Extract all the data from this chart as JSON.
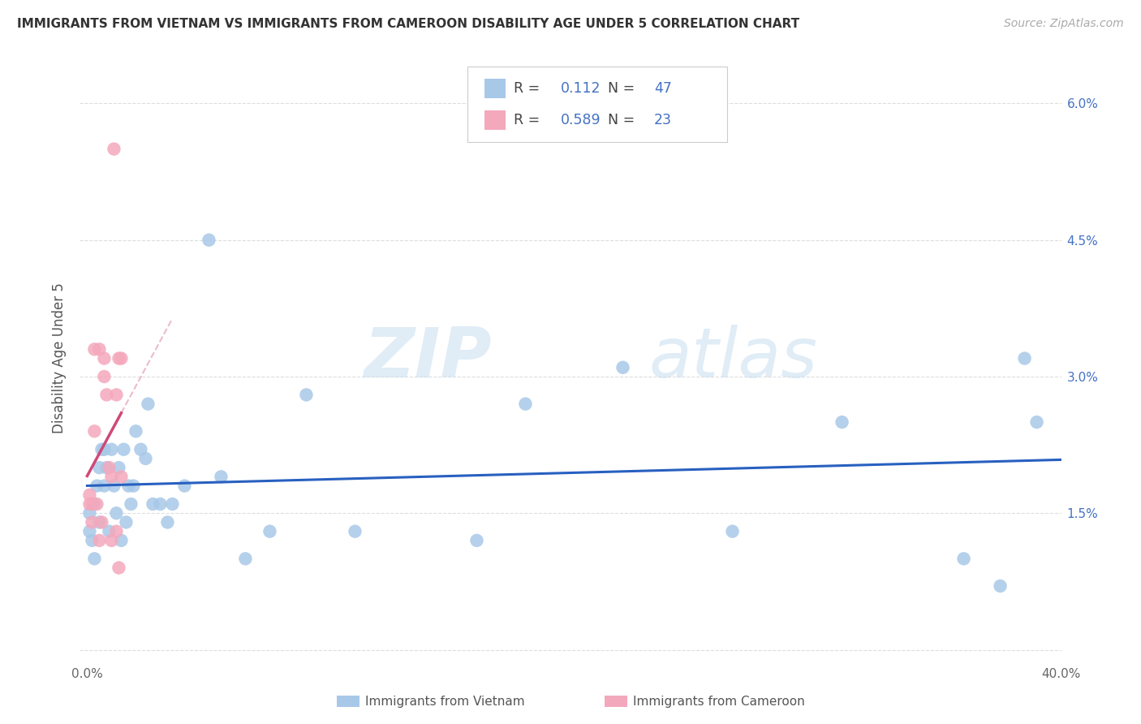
{
  "title": "IMMIGRANTS FROM VIETNAM VS IMMIGRANTS FROM CAMEROON DISABILITY AGE UNDER 5 CORRELATION CHART",
  "source": "Source: ZipAtlas.com",
  "ylabel": "Disability Age Under 5",
  "xmin": 0.0,
  "xmax": 0.4,
  "ymin": 0.0,
  "ymax": 0.065,
  "ytick_vals": [
    0.0,
    0.015,
    0.03,
    0.045,
    0.06
  ],
  "ytick_labels_left": [
    "",
    "",
    "",
    "",
    ""
  ],
  "ytick_labels_right": [
    "",
    "1.5%",
    "3.0%",
    "4.5%",
    "6.0%"
  ],
  "xtick_vals": [
    0.0,
    0.1,
    0.2,
    0.3,
    0.4
  ],
  "xtick_labels": [
    "0.0%",
    "",
    "",
    "",
    "40.0%"
  ],
  "vietnam_color": "#a8c8e8",
  "cameroon_color": "#f4a8bc",
  "vietnam_line_color": "#2860c0",
  "cameroon_line_color": "#d04878",
  "cameroon_dash_color": "#e8b0c0",
  "R_vietnam": "0.112",
  "N_vietnam": "47",
  "R_cameroon": "0.589",
  "N_cameroon": "23",
  "label_vietnam": "Immigrants from Vietnam",
  "label_cameroon": "Immigrants from Cameroon",
  "watermark_zip": "ZIP",
  "watermark_atlas": "atlas",
  "vietnam_x": [
    0.001,
    0.001,
    0.002,
    0.003,
    0.003,
    0.004,
    0.005,
    0.005,
    0.006,
    0.007,
    0.007,
    0.008,
    0.009,
    0.01,
    0.011,
    0.012,
    0.013,
    0.014,
    0.015,
    0.016,
    0.017,
    0.018,
    0.019,
    0.02,
    0.022,
    0.024,
    0.025,
    0.027,
    0.03,
    0.033,
    0.035,
    0.04,
    0.05,
    0.055,
    0.065,
    0.075,
    0.09,
    0.11,
    0.16,
    0.18,
    0.22,
    0.265,
    0.31,
    0.36,
    0.375,
    0.385,
    0.39
  ],
  "vietnam_y": [
    0.015,
    0.013,
    0.012,
    0.01,
    0.016,
    0.018,
    0.014,
    0.02,
    0.022,
    0.022,
    0.018,
    0.02,
    0.013,
    0.022,
    0.018,
    0.015,
    0.02,
    0.012,
    0.022,
    0.014,
    0.018,
    0.016,
    0.018,
    0.024,
    0.022,
    0.021,
    0.027,
    0.016,
    0.016,
    0.014,
    0.016,
    0.018,
    0.045,
    0.019,
    0.01,
    0.013,
    0.028,
    0.013,
    0.012,
    0.027,
    0.031,
    0.013,
    0.025,
    0.01,
    0.007,
    0.032,
    0.025
  ],
  "cameroon_x": [
    0.001,
    0.001,
    0.002,
    0.002,
    0.003,
    0.003,
    0.004,
    0.005,
    0.005,
    0.006,
    0.007,
    0.007,
    0.008,
    0.009,
    0.01,
    0.01,
    0.011,
    0.012,
    0.012,
    0.013,
    0.013,
    0.014,
    0.014
  ],
  "cameroon_y": [
    0.016,
    0.017,
    0.014,
    0.016,
    0.024,
    0.033,
    0.016,
    0.033,
    0.012,
    0.014,
    0.03,
    0.032,
    0.028,
    0.02,
    0.019,
    0.012,
    0.055,
    0.028,
    0.013,
    0.009,
    0.032,
    0.032,
    0.019
  ]
}
